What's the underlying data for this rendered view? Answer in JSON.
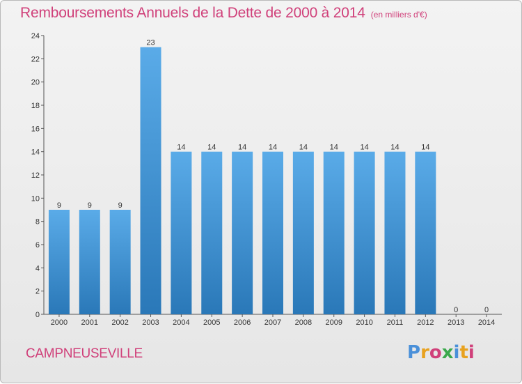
{
  "header": {
    "title": "Remboursements Annuels de la Dette de 2000 à 2014",
    "unit": "(en milliers d'€)"
  },
  "footer": {
    "commune": "CAMPNEUSEVILLE",
    "logo_text": "Proxiti",
    "logo_colors": [
      "#4a90d9",
      "#e8a21f",
      "#d0407a",
      "#3aa84b",
      "#4a90d9",
      "#e8a21f",
      "#d0407a"
    ]
  },
  "chart_data": {
    "type": "bar",
    "categories": [
      "2000",
      "2001",
      "2002",
      "2003",
      "2004",
      "2005",
      "2006",
      "2007",
      "2008",
      "2009",
      "2010",
      "2011",
      "2012",
      "2013",
      "2014"
    ],
    "values": [
      9,
      9,
      9,
      23,
      14,
      14,
      14,
      14,
      14,
      14,
      14,
      14,
      14,
      0,
      0
    ],
    "data_labels": [
      "9",
      "9",
      "9",
      "23",
      "14",
      "14",
      "14",
      "14",
      "14",
      "14",
      "14",
      "14",
      "14",
      "0",
      "0"
    ],
    "ylim": [
      0,
      24
    ],
    "yticks": [
      0,
      2,
      4,
      6,
      8,
      10,
      12,
      14,
      16,
      18,
      20,
      22,
      24
    ],
    "grid": false,
    "bar_color_top": "#5aabe8",
    "bar_color_bottom": "#2a78b8"
  }
}
